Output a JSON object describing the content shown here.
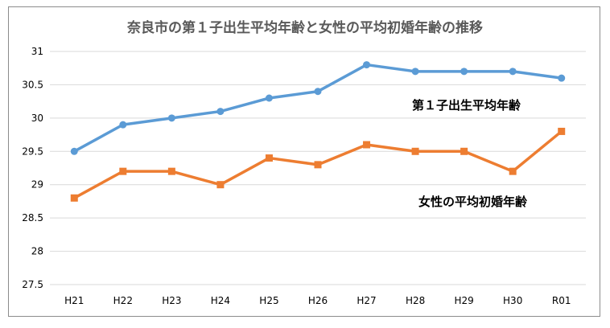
{
  "chart_data": {
    "type": "line",
    "title": "奈良市の第１子出生平均年齢と女性の平均初婚年齢の推移",
    "categories": [
      "H21",
      "H22",
      "H23",
      "H24",
      "H25",
      "H26",
      "H27",
      "H28",
      "H29",
      "H30",
      "R01"
    ],
    "series": [
      {
        "name": "第１子出生平均年齢",
        "color": "#5b9bd5",
        "marker": "circle",
        "values": [
          29.5,
          29.9,
          30.0,
          30.1,
          30.3,
          30.4,
          30.8,
          30.7,
          30.7,
          30.7,
          30.6
        ]
      },
      {
        "name": "女性の平均初婚年齢",
        "color": "#ed7d31",
        "marker": "square",
        "values": [
          28.8,
          29.2,
          29.2,
          29.0,
          29.4,
          29.3,
          29.6,
          29.5,
          29.5,
          29.2,
          29.8
        ]
      }
    ],
    "ylim": [
      27.5,
      31
    ],
    "yticks": [
      "27.5",
      "28",
      "28.5",
      "29",
      "29.5",
      "30",
      "30.5",
      "31"
    ],
    "xlabel": "",
    "ylabel": "",
    "grid": "horizontal",
    "legend": "inline labels"
  }
}
